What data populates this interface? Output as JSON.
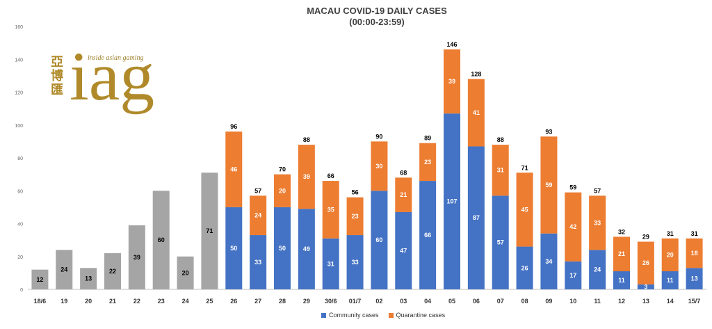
{
  "chart_data": {
    "type": "bar",
    "stacked": true,
    "title": "MACAU COVID-19 DAILY CASES",
    "subtitle": "(00:00-23:59)",
    "ylim": [
      0,
      160
    ],
    "yticks": [
      0,
      20,
      40,
      60,
      80,
      100,
      120,
      140,
      160
    ],
    "grid": false,
    "legend_position": "bottom",
    "categories": [
      "18/6",
      "19",
      "20",
      "21",
      "22",
      "23",
      "24",
      "25",
      "26",
      "27",
      "28",
      "29",
      "30/6",
      "01/7",
      "02",
      "03",
      "04",
      "05",
      "06",
      "07",
      "08",
      "09",
      "10",
      "11",
      "12",
      "13",
      "14",
      "15/7"
    ],
    "totals": [
      null,
      null,
      null,
      null,
      null,
      null,
      null,
      null,
      96,
      57,
      70,
      88,
      66,
      56,
      90,
      68,
      89,
      146,
      128,
      88,
      71,
      93,
      59,
      57,
      32,
      29,
      31,
      31
    ],
    "series": [
      {
        "name": "",
        "color": "#a5a5a5",
        "values": [
          12,
          24,
          13,
          22,
          39,
          60,
          20,
          71,
          null,
          null,
          null,
          null,
          null,
          null,
          null,
          null,
          null,
          null,
          null,
          null,
          null,
          null,
          null,
          null,
          null,
          null,
          null,
          null
        ]
      },
      {
        "name": "Community cases",
        "color": "#4472c4",
        "values": [
          null,
          null,
          null,
          null,
          null,
          null,
          null,
          null,
          50,
          33,
          50,
          49,
          31,
          33,
          60,
          47,
          66,
          107,
          87,
          57,
          26,
          34,
          17,
          24,
          11,
          3,
          11,
          13
        ]
      },
      {
        "name": "Quarantine cases",
        "color": "#ed7d31",
        "values": [
          null,
          null,
          null,
          null,
          null,
          null,
          null,
          null,
          46,
          24,
          20,
          39,
          35,
          23,
          30,
          21,
          23,
          39,
          41,
          31,
          45,
          59,
          42,
          33,
          21,
          26,
          20,
          18
        ]
      }
    ]
  },
  "logo": {
    "chinese": "亞博匯",
    "tagline": "inside asian gaming",
    "wordmark": "iag"
  }
}
